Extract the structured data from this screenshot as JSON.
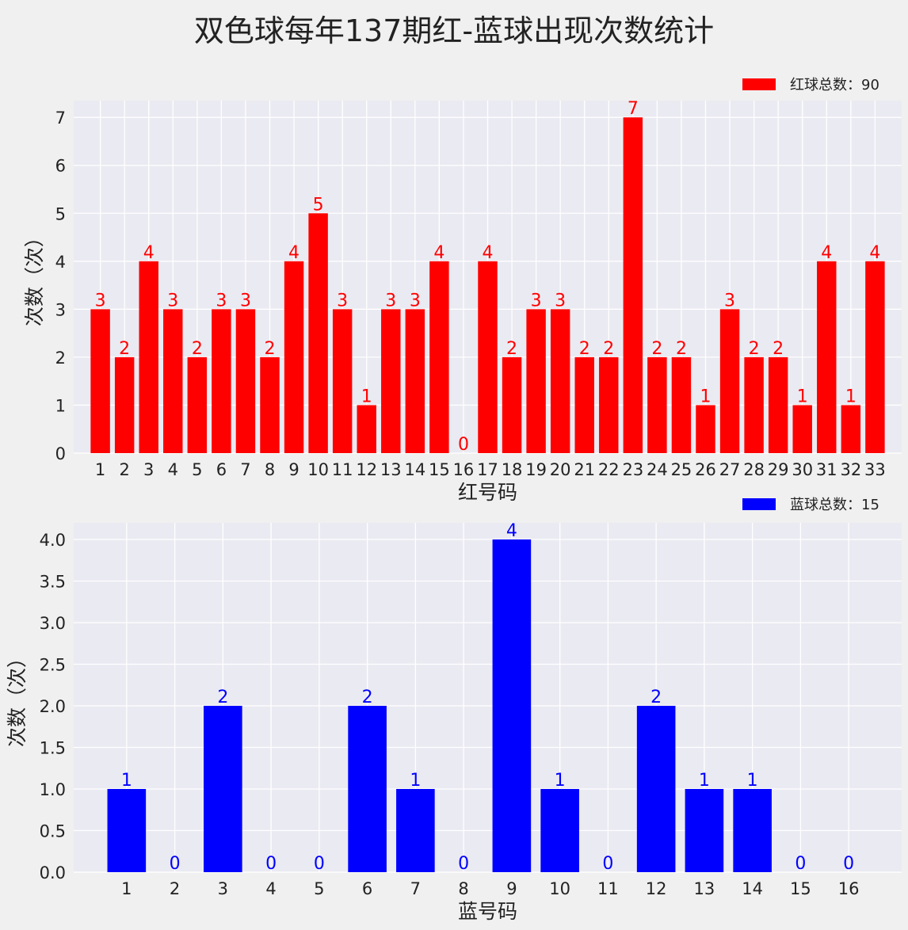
{
  "title": "双色球每年137期红-蓝球出现次数统计",
  "colors": {
    "red": "#ff0000",
    "blue": "#0000ff",
    "plot_bg": "#eaeaf2",
    "grid": "#ffffff",
    "text": "#222222"
  },
  "chart_data": [
    {
      "type": "bar",
      "xlabel": "红号码",
      "ylabel": "次数（次）",
      "legend": "红球总数：90",
      "legend_position": "top-right",
      "grid": true,
      "color": "#ff0000",
      "ylim": [
        0,
        7.35
      ],
      "yticks": [
        0,
        1,
        2,
        3,
        4,
        5,
        6,
        7
      ],
      "ytick_labels": [
        "0",
        "1",
        "2",
        "3",
        "4",
        "5",
        "6",
        "7"
      ],
      "categories": [
        "1",
        "2",
        "3",
        "4",
        "5",
        "6",
        "7",
        "8",
        "9",
        "10",
        "11",
        "12",
        "13",
        "14",
        "15",
        "16",
        "17",
        "18",
        "19",
        "20",
        "21",
        "22",
        "23",
        "24",
        "25",
        "26",
        "27",
        "28",
        "29",
        "30",
        "31",
        "32",
        "33"
      ],
      "values": [
        3,
        2,
        4,
        3,
        2,
        3,
        3,
        2,
        4,
        5,
        3,
        1,
        3,
        3,
        4,
        0,
        4,
        2,
        3,
        3,
        2,
        2,
        7,
        2,
        2,
        1,
        3,
        2,
        2,
        1,
        4,
        1,
        4
      ],
      "value_labels": [
        "3",
        "2",
        "4",
        "3",
        "2",
        "3",
        "3",
        "2",
        "4",
        "5",
        "3",
        "1",
        "3",
        "3",
        "4",
        "0",
        "4",
        "2",
        "3",
        "3",
        "2",
        "2",
        "7",
        "2",
        "2",
        "1",
        "3",
        "2",
        "2",
        "1",
        "4",
        "1",
        "4"
      ]
    },
    {
      "type": "bar",
      "xlabel": "蓝号码",
      "ylabel": "次数（次）",
      "legend": "蓝球总数：15",
      "legend_position": "top-right",
      "grid": true,
      "color": "#0000ff",
      "ylim": [
        0,
        4.2
      ],
      "yticks": [
        0,
        0.5,
        1,
        1.5,
        2,
        2.5,
        3,
        3.5,
        4
      ],
      "ytick_labels": [
        "0.0",
        "0.5",
        "1.0",
        "1.5",
        "2.0",
        "2.5",
        "3.0",
        "3.5",
        "4.0"
      ],
      "categories": [
        "1",
        "2",
        "3",
        "4",
        "5",
        "6",
        "7",
        "8",
        "9",
        "10",
        "11",
        "12",
        "13",
        "14",
        "15",
        "16"
      ],
      "values": [
        1,
        0,
        2,
        0,
        0,
        2,
        1,
        0,
        4,
        1,
        0,
        2,
        1,
        1,
        0,
        0
      ],
      "value_labels": [
        "1",
        "0",
        "2",
        "0",
        "0",
        "2",
        "1",
        "0",
        "4",
        "1",
        "0",
        "2",
        "1",
        "1",
        "0",
        "0"
      ]
    }
  ]
}
